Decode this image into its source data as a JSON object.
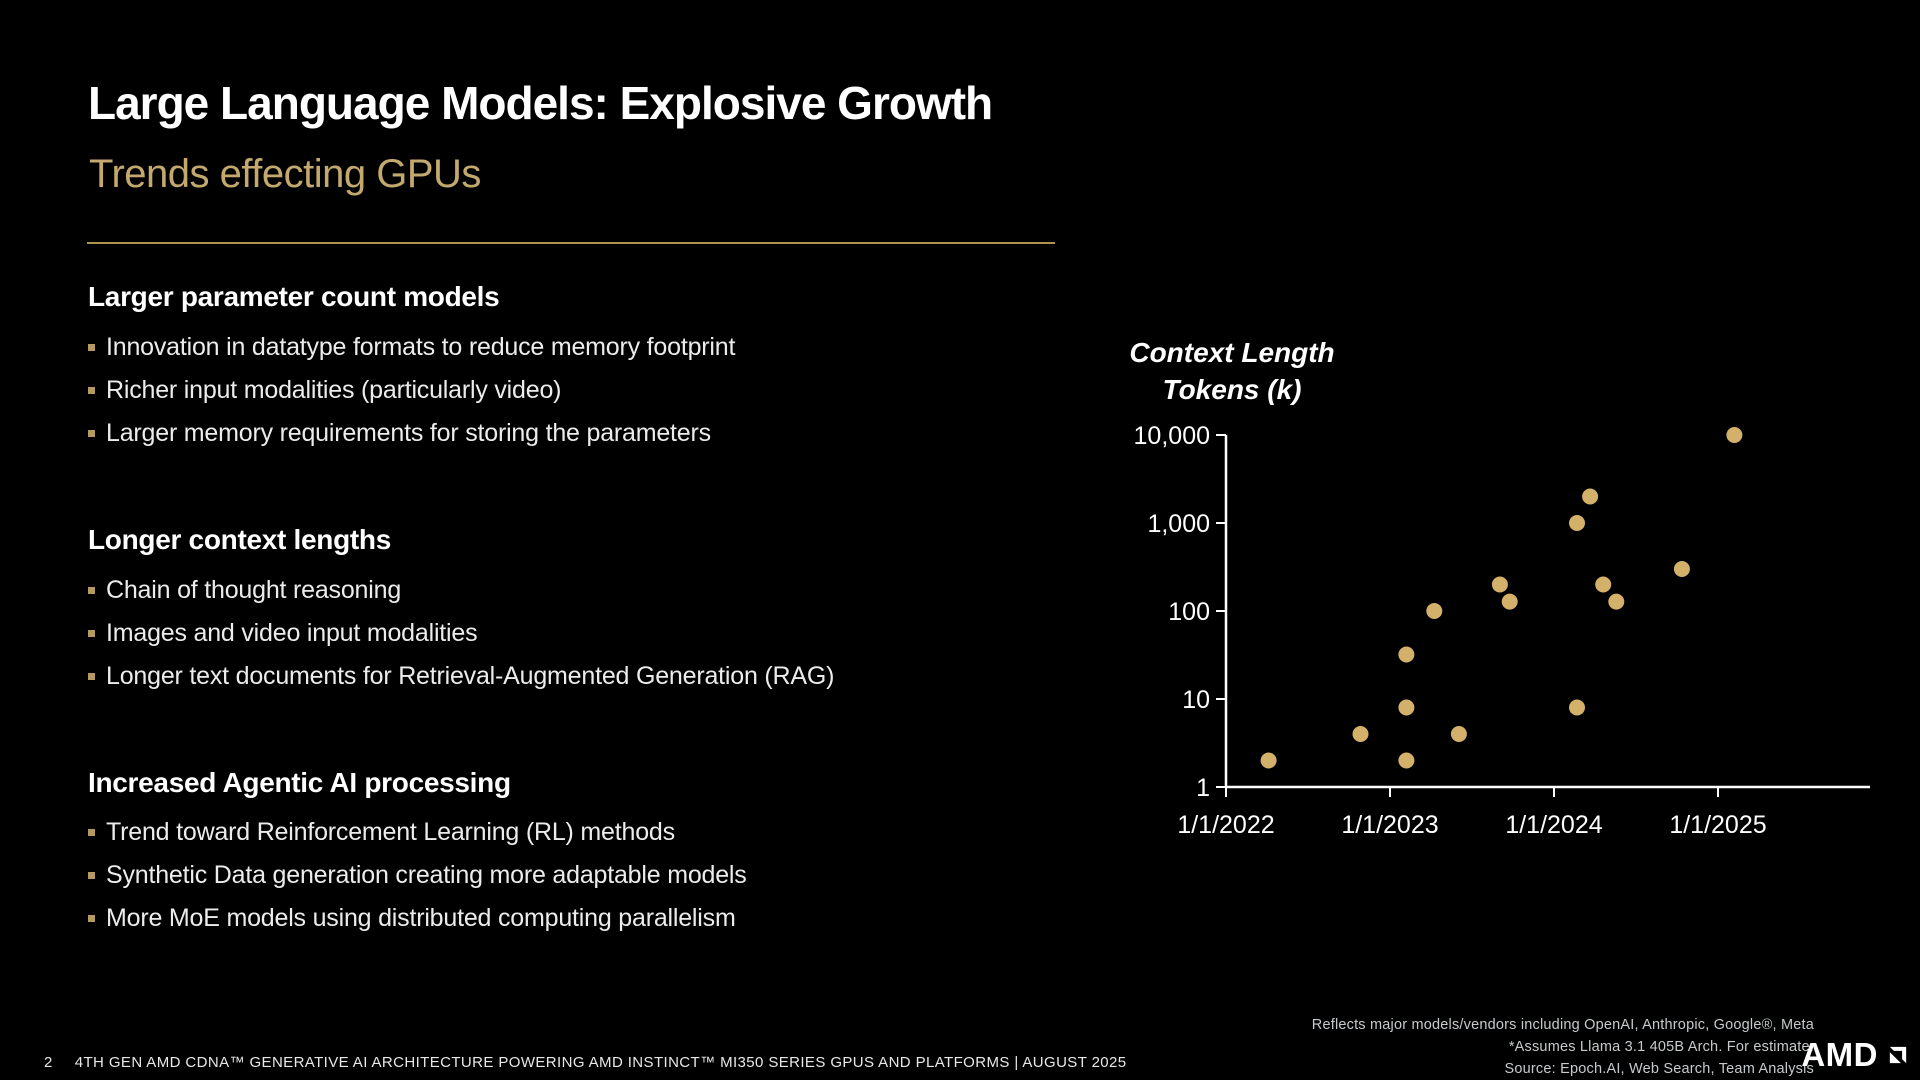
{
  "slide": {
    "title": "Large Language Models: Explosive Growth",
    "subtitle": "Trends effecting GPUs",
    "sections": [
      {
        "heading": "Larger parameter count models",
        "bullets": [
          "Innovation in datatype formats to reduce memory footprint",
          "Richer input modalities (particularly video)",
          "Larger memory requirements for storing the parameters"
        ]
      },
      {
        "heading": "Longer context lengths",
        "bullets": [
          "Chain of thought reasoning",
          "Images and video input modalities",
          "Longer text documents for Retrieval-Augmented Generation (RAG)"
        ]
      },
      {
        "heading": "Increased Agentic AI processing",
        "bullets": [
          "Trend toward Reinforcement Learning (RL)  methods",
          "Synthetic Data generation creating more adaptable models",
          "More MoE models using distributed computing parallelism"
        ]
      }
    ],
    "footnotes": [
      "Reflects major models/vendors including OpenAI, Anthropic, Google®, Meta",
      "*Assumes Llama 3.1 405B Arch. For estimate.",
      "Source: Epoch.AI, Web Search, Team Analysis"
    ],
    "footer": {
      "page_number": "2",
      "text": "4TH GEN AMD CDNA™ GENERATIVE AI ARCHITECTURE POWERING AMD INSTINCT™ MI350 SERIES GPUS AND PLATFORMS  |  AUGUST 2025"
    },
    "logo_text": "AMD"
  },
  "colors": {
    "background": "#000000",
    "gold": "#C3A96E",
    "gold_rule": "#AE9250",
    "gold_bullet": "#B49A5E",
    "dot": "#D4B16A",
    "gray_note": "#C6CACC"
  },
  "chart_data": {
    "type": "scatter",
    "title_lines": [
      "Context Length",
      "Tokens (k)"
    ],
    "legend_position": "none",
    "grid": false,
    "x_axis": {
      "tick_labels": [
        "1/1/2022",
        "1/1/2023",
        "1/1/2024",
        "1/1/2025"
      ],
      "tick_years": [
        0,
        1,
        2,
        3
      ],
      "range_years": [
        0,
        3.93
      ]
    },
    "y_axis": {
      "scale": "log",
      "ticks": [
        1,
        10,
        100,
        1000,
        10000
      ],
      "tick_labels": [
        "1",
        "10",
        "100",
        "1,000",
        "10,000"
      ],
      "range": [
        1,
        10000
      ]
    },
    "points": [
      {
        "t": 0.26,
        "v": 2,
        "date": "Apr 2022"
      },
      {
        "t": 0.82,
        "v": 4,
        "date": "Nov 2022"
      },
      {
        "t": 1.1,
        "v": 2,
        "date": "Feb 2023"
      },
      {
        "t": 1.1,
        "v": 8,
        "date": "Feb 2023"
      },
      {
        "t": 1.1,
        "v": 32,
        "date": "Feb 2023"
      },
      {
        "t": 1.27,
        "v": 100,
        "date": "Apr 2023"
      },
      {
        "t": 1.42,
        "v": 4,
        "date": "Jun 2023"
      },
      {
        "t": 1.67,
        "v": 200,
        "date": "Sep 2023"
      },
      {
        "t": 1.73,
        "v": 128,
        "date": "Oct 2023"
      },
      {
        "t": 2.14,
        "v": 8,
        "date": "Feb 2024"
      },
      {
        "t": 2.14,
        "v": 1000,
        "date": "Feb 2024"
      },
      {
        "t": 2.22,
        "v": 2000,
        "date": "Mar 2024"
      },
      {
        "t": 2.3,
        "v": 200,
        "date": "Apr 2024"
      },
      {
        "t": 2.38,
        "v": 128,
        "date": "May 2024"
      },
      {
        "t": 2.78,
        "v": 300,
        "date": "Oct 2024"
      },
      {
        "t": 3.1,
        "v": 10000,
        "date": "Feb 2025"
      }
    ]
  }
}
